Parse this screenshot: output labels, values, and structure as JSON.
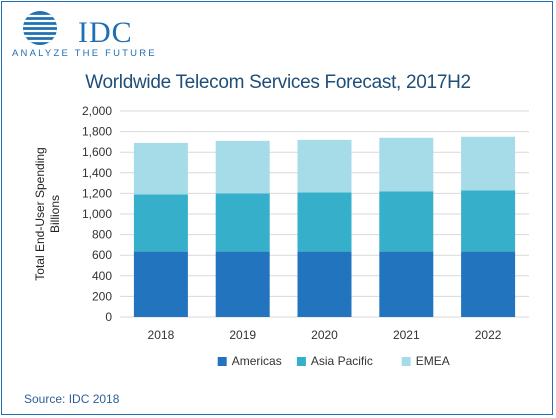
{
  "logo": {
    "name": "IDC",
    "tagline": "ANALYZE THE FUTURE"
  },
  "source": "Source: IDC 2018",
  "colors": {
    "americas": "#2374be",
    "asia_pacific": "#36afcb",
    "emea": "#a6dbe8",
    "brand": "#1f6fb5"
  },
  "chart_data": {
    "type": "bar",
    "stacked": true,
    "title": "Worldwide Telecom Services Forecast, 2017H2",
    "ylabel": [
      "Total End-User  Spending",
      "Billions"
    ],
    "xlabel": "",
    "ylim": [
      0,
      2000
    ],
    "ytick_step": 200,
    "grid": true,
    "legend": "bottom",
    "categories": [
      "2018",
      "2019",
      "2020",
      "2021",
      "2022"
    ],
    "series": [
      {
        "name": "Americas",
        "values": [
          635,
          635,
          635,
          635,
          635
        ]
      },
      {
        "name": "Asia Pacific",
        "values": [
          555,
          565,
          575,
          585,
          595
        ]
      },
      {
        "name": "EMEA",
        "values": [
          500,
          510,
          510,
          520,
          520
        ]
      }
    ]
  }
}
